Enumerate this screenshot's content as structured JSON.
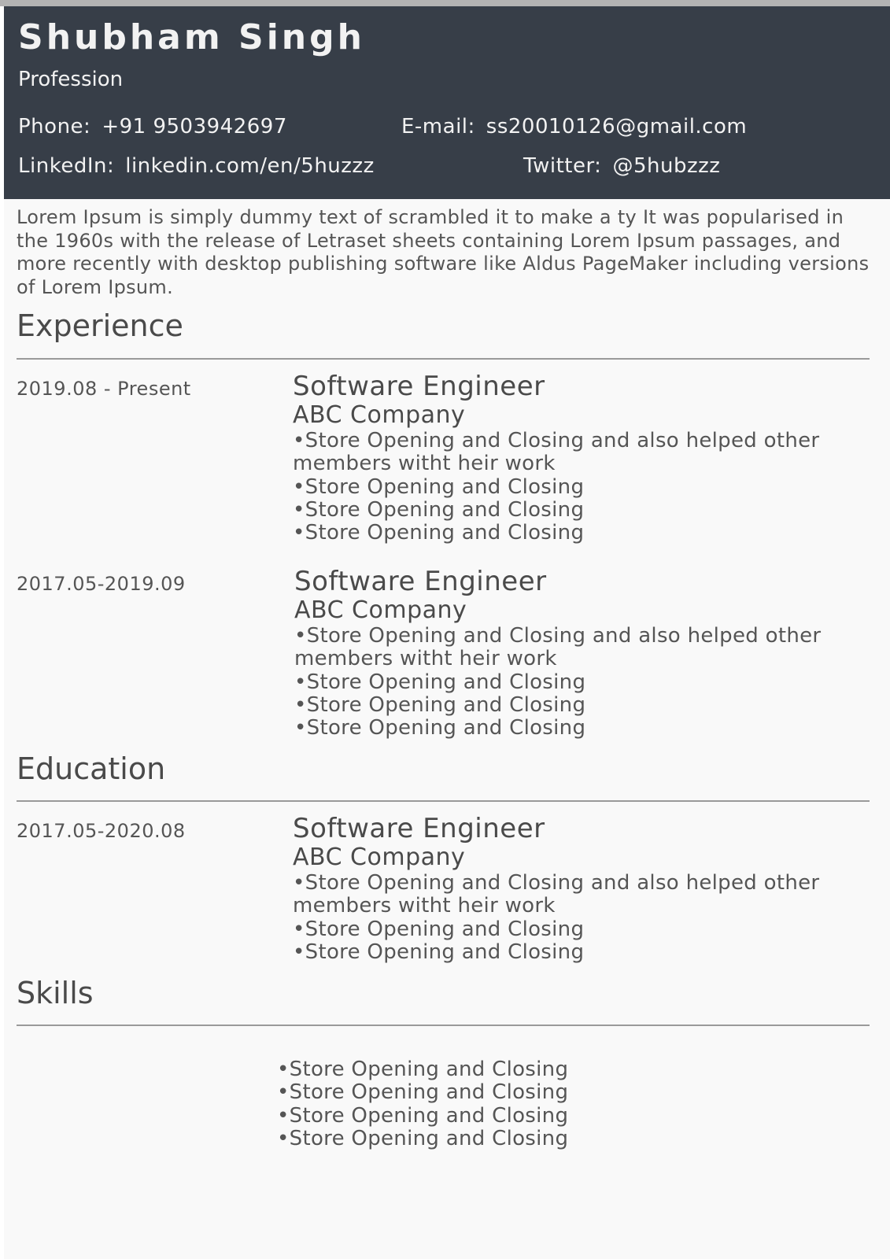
{
  "header": {
    "name": "Shubham Singh",
    "profession": "Profession",
    "phone_label": "Phone:",
    "phone": "+91 9503942697",
    "email_label": "E-mail:",
    "email": "ss20010126@gmail.com",
    "linkedin_label": "LinkedIn:",
    "linkedin": "linkedin.com/en/5huzzz",
    "twitter_label": "Twitter:",
    "twitter": "@5hubzzz"
  },
  "summary": "Lorem Ipsum is simply dummy text of  scrambled it to make a ty It was popularised in the 1960s with the release of Letraset sheets containing Lorem Ipsum passages, and more recently with desktop publishing software like Aldus PageMaker including versions of Lorem Ipsum.",
  "experience": {
    "title": "Experience",
    "entries": [
      {
        "date": "2019.08 - Present",
        "role": "Software Engineer",
        "company": "ABC Company",
        "bullets": [
          "Store Opening and Closing and also helped other members witht heir work",
          "Store Opening and Closing",
          "Store Opening and Closing",
          "Store Opening and Closing"
        ]
      },
      {
        "date": "2017.05-2019.09",
        "role": "Software Engineer",
        "company": "ABC Company",
        "bullets": [
          "Store Opening and Closing and also helped other members witht heir work",
          "Store Opening and Closing",
          "Store Opening and Closing",
          "Store Opening and Closing"
        ]
      }
    ]
  },
  "education": {
    "title": "Education",
    "entries": [
      {
        "date": "2017.05-2020.08",
        "role": "Software Engineer",
        "company": "ABC Company",
        "bullets": [
          "Store Opening and Closing and also helped other members witht heir work",
          "Store Opening and Closing",
          "Store Opening and Closing"
        ]
      }
    ]
  },
  "skills": {
    "title": "Skills",
    "items": [
      "Store Opening and Closing",
      "Store Opening and Closing",
      "Store Opening and Closing",
      "Store Opening and Closing"
    ]
  },
  "colors": {
    "header_bg": "#373e48",
    "page_bg": "#f9f9f9",
    "text": "#4a4a4a"
  }
}
